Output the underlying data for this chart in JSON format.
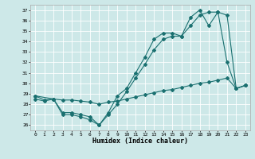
{
  "xlabel": "Humidex (Indice chaleur)",
  "background_color": "#cde8e8",
  "line_color": "#1a7070",
  "grid_color": "#ffffff",
  "xlim": [
    -0.5,
    23.5
  ],
  "ylim": [
    25.5,
    37.5
  ],
  "xticks": [
    0,
    1,
    2,
    3,
    4,
    5,
    6,
    7,
    8,
    9,
    10,
    11,
    12,
    13,
    14,
    15,
    16,
    17,
    18,
    19,
    20,
    21,
    22,
    23
  ],
  "yticks": [
    26,
    27,
    28,
    29,
    30,
    31,
    32,
    33,
    34,
    35,
    36,
    37
  ],
  "line1_x": [
    0,
    1,
    2,
    3,
    4,
    5,
    6,
    7,
    8,
    9,
    10,
    11,
    12,
    13,
    14,
    15,
    16,
    17,
    18,
    19,
    20,
    21,
    22,
    23
  ],
  "line1_y": [
    28.8,
    28.4,
    28.5,
    27.2,
    27.2,
    27.0,
    26.8,
    26.0,
    27.2,
    28.8,
    29.5,
    31.0,
    32.5,
    34.2,
    34.8,
    34.8,
    34.5,
    36.3,
    37.0,
    35.5,
    36.8,
    32.0,
    29.5,
    29.8
  ],
  "line2_x": [
    0,
    2,
    3,
    4,
    5,
    6,
    7,
    8,
    9,
    10,
    11,
    12,
    13,
    14,
    15,
    16,
    17,
    18,
    19,
    20,
    21,
    22,
    23
  ],
  "line2_y": [
    28.8,
    28.5,
    27.0,
    27.0,
    26.8,
    26.5,
    26.0,
    27.0,
    28.0,
    29.2,
    30.5,
    31.8,
    33.2,
    34.2,
    34.5,
    34.5,
    35.5,
    36.5,
    36.8,
    36.8,
    36.5,
    29.5,
    29.8
  ],
  "line3_x": [
    0,
    1,
    2,
    3,
    4,
    5,
    6,
    7,
    8,
    9,
    10,
    11,
    12,
    13,
    14,
    15,
    16,
    17,
    18,
    19,
    20,
    21,
    22,
    23
  ],
  "line3_y": [
    28.5,
    28.3,
    28.5,
    28.4,
    28.4,
    28.3,
    28.2,
    28.0,
    28.2,
    28.3,
    28.5,
    28.7,
    28.9,
    29.1,
    29.3,
    29.4,
    29.6,
    29.8,
    30.0,
    30.1,
    30.3,
    30.5,
    29.5,
    29.8
  ]
}
